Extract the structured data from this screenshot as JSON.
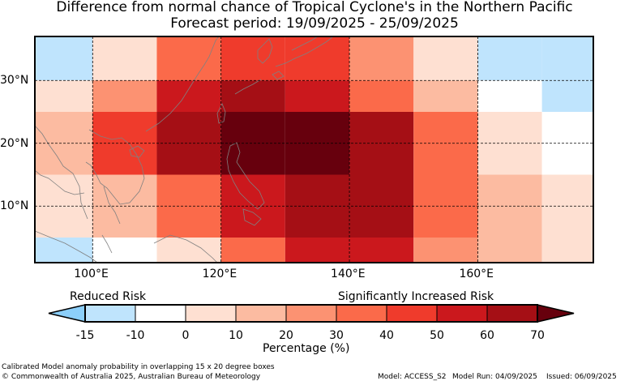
{
  "title": "Difference from normal chance of Tropical Cyclone's in the Northern Pacific",
  "subtitle": "Forecast period: 19/09/2025 - 25/09/2025",
  "map": {
    "lon_labels": [
      "100°E",
      "120°E",
      "140°E",
      "160°E"
    ],
    "lat_labels": [
      "30°N",
      "20°N",
      "10°N"
    ],
    "lon_range": [
      91,
      178
    ],
    "lat_range": [
      1,
      37
    ],
    "grid": true
  },
  "grid_cells": {
    "row_lat_bands": [
      "30-37N",
      "25-30N",
      "15-25N",
      "5-15N",
      "0-5N"
    ],
    "col_lon_bands": [
      "90-100E",
      "100-110E",
      "110-120E",
      "120-130E",
      "130-140E",
      "140-150E",
      "150-160E",
      "160-170E",
      "170-180E"
    ],
    "values": [
      [
        -15,
        0,
        30,
        40,
        40,
        20,
        0,
        -15,
        -15
      ],
      [
        0,
        20,
        50,
        60,
        50,
        30,
        10,
        -10,
        -15
      ],
      [
        10,
        40,
        60,
        70,
        70,
        60,
        30,
        0,
        -10
      ],
      [
        0,
        10,
        30,
        50,
        60,
        60,
        30,
        10,
        0
      ],
      [
        -15,
        -10,
        0,
        30,
        50,
        50,
        20,
        10,
        0
      ]
    ]
  },
  "legend": {
    "left_label": "Reduced Risk",
    "right_label": "Significantly Increased Risk",
    "ticks": [
      "-15",
      "-10",
      "0",
      "10",
      "20",
      "30",
      "40",
      "50",
      "60",
      "70"
    ],
    "colors": [
      "#8ccffa",
      "#bfe4fd",
      "#ffffff",
      "#fee0d2",
      "#fcbba1",
      "#fc9272",
      "#fb6a4a",
      "#ef3b2c",
      "#cb181d",
      "#a50f15",
      "#67000d"
    ],
    "xlabel": "Percentage (%)"
  },
  "footer": {
    "line1": "Calibrated Model anomaly probability in overlapping 15 x 20 degree boxes",
    "line2": "© Commonwealth of Australia 2025, Australian Bureau of Meteorology",
    "model": "Model: ACCESS_S2",
    "model_run": "Model Run: 04/09/2025",
    "issued": "Issued: 06/09/2025"
  }
}
